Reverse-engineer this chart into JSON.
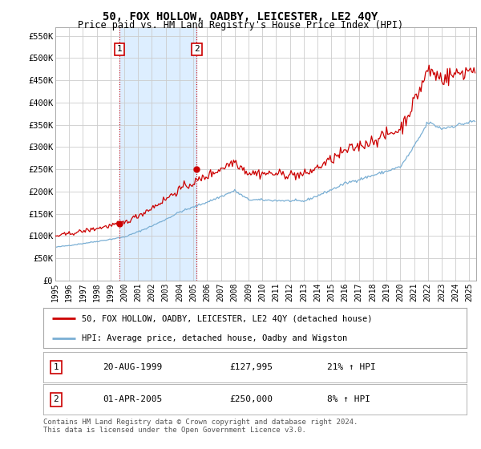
{
  "title": "50, FOX HOLLOW, OADBY, LEICESTER, LE2 4QY",
  "subtitle": "Price paid vs. HM Land Registry's House Price Index (HPI)",
  "ylim": [
    0,
    570000
  ],
  "yticks": [
    0,
    50000,
    100000,
    150000,
    200000,
    250000,
    300000,
    350000,
    400000,
    450000,
    500000,
    550000
  ],
  "ytick_labels": [
    "£0",
    "£50K",
    "£100K",
    "£150K",
    "£200K",
    "£250K",
    "£300K",
    "£350K",
    "£400K",
    "£450K",
    "£500K",
    "£550K"
  ],
  "xlim_start": 1995.0,
  "xlim_end": 2025.5,
  "xticks": [
    1995,
    1996,
    1997,
    1998,
    1999,
    2000,
    2001,
    2002,
    2003,
    2004,
    2005,
    2006,
    2007,
    2008,
    2009,
    2010,
    2011,
    2012,
    2013,
    2014,
    2015,
    2016,
    2017,
    2018,
    2019,
    2020,
    2021,
    2022,
    2023,
    2024,
    2025
  ],
  "red_line_color": "#cc0000",
  "blue_line_color": "#7aafd4",
  "shade_color": "#ddeeff",
  "grid_color": "#cccccc",
  "bg_color": "#ffffff",
  "transaction1_x": 1999.64,
  "transaction1_y": 127995,
  "transaction2_x": 2005.25,
  "transaction2_y": 250000,
  "legend_line1": "50, FOX HOLLOW, OADBY, LEICESTER, LE2 4QY (detached house)",
  "legend_line2": "HPI: Average price, detached house, Oadby and Wigston",
  "table_row1_num": "1",
  "table_row1_date": "20-AUG-1999",
  "table_row1_price": "£127,995",
  "table_row1_hpi": "21% ↑ HPI",
  "table_row2_num": "2",
  "table_row2_date": "01-APR-2005",
  "table_row2_price": "£250,000",
  "table_row2_hpi": "8% ↑ HPI",
  "footer": "Contains HM Land Registry data © Crown copyright and database right 2024.\nThis data is licensed under the Open Government Licence v3.0."
}
